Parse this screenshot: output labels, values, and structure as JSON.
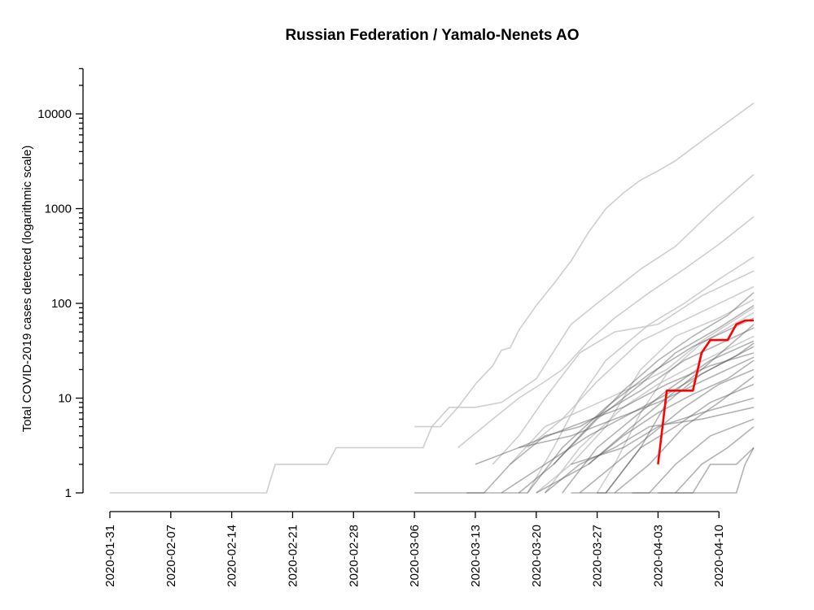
{
  "chart_data": {
    "type": "line",
    "title": "Russian Federation / Yamalo-Nenets AO",
    "xlabel": "",
    "ylabel": "Total COVID-2019 cases detected (logarithmic scale)",
    "y_scale": "log",
    "ylim": [
      1,
      30000
    ],
    "xlim": [
      "2020-01-31",
      "2020-04-14"
    ],
    "x_ticks": [
      "2020-01-31",
      "2020-02-07",
      "2020-02-14",
      "2020-02-21",
      "2020-02-28",
      "2020-03-06",
      "2020-03-13",
      "2020-03-20",
      "2020-03-27",
      "2020-04-03",
      "2020-04-10"
    ],
    "y_ticks": [
      1,
      10,
      100,
      1000,
      10000
    ],
    "y_tick_labels": [
      "1",
      "10",
      "100",
      "1000",
      "10000"
    ],
    "colors": {
      "highlight": "#ff0000",
      "other_regions": "#bdbdbd",
      "dense_regions": "#555555"
    },
    "highlight_series": {
      "name": "Yamalo-Nenets AO",
      "points": [
        [
          "2020-04-03",
          2
        ],
        [
          "2020-04-04",
          12
        ],
        [
          "2020-04-07",
          12
        ],
        [
          "2020-04-08",
          30
        ],
        [
          "2020-04-09",
          41
        ],
        [
          "2020-04-11",
          41
        ],
        [
          "2020-04-12",
          60
        ],
        [
          "2020-04-13",
          66
        ],
        [
          "2020-04-14",
          66
        ]
      ]
    },
    "other_series": [
      {
        "points": [
          [
            "2020-01-31",
            1
          ],
          [
            "2020-02-18",
            1
          ],
          [
            "2020-02-19",
            2
          ],
          [
            "2020-02-25",
            2
          ],
          [
            "2020-02-26",
            3
          ],
          [
            "2020-03-07",
            3
          ],
          [
            "2020-03-08",
            5
          ],
          [
            "2020-03-09",
            5
          ],
          [
            "2020-03-11",
            8
          ],
          [
            "2020-03-13",
            14
          ],
          [
            "2020-03-15",
            22
          ],
          [
            "2020-03-16",
            32
          ],
          [
            "2020-03-17",
            34
          ],
          [
            "2020-03-18",
            52
          ],
          [
            "2020-03-20",
            95
          ],
          [
            "2020-03-22",
            160
          ],
          [
            "2020-03-24",
            280
          ],
          [
            "2020-03-26",
            560
          ],
          [
            "2020-03-28",
            1000
          ],
          [
            "2020-03-30",
            1460
          ],
          [
            "2020-04-01",
            2000
          ],
          [
            "2020-04-03",
            2500
          ],
          [
            "2020-04-05",
            3200
          ],
          [
            "2020-04-07",
            4400
          ],
          [
            "2020-04-10",
            7000
          ],
          [
            "2020-04-14",
            13000
          ]
        ]
      },
      {
        "points": [
          [
            "2020-03-06",
            5
          ],
          [
            "2020-03-08",
            5
          ],
          [
            "2020-03-10",
            8
          ],
          [
            "2020-03-13",
            8
          ],
          [
            "2020-03-16",
            9
          ],
          [
            "2020-03-18",
            12
          ],
          [
            "2020-03-20",
            16
          ],
          [
            "2020-03-24",
            60
          ],
          [
            "2020-03-27",
            100
          ],
          [
            "2020-04-01",
            230
          ],
          [
            "2020-04-05",
            400
          ],
          [
            "2020-04-09",
            900
          ],
          [
            "2020-04-14",
            2300
          ]
        ]
      },
      {
        "points": [
          [
            "2020-03-11",
            3
          ],
          [
            "2020-03-15",
            6
          ],
          [
            "2020-03-18",
            10
          ],
          [
            "2020-03-21",
            15
          ],
          [
            "2020-03-23",
            20
          ],
          [
            "2020-03-26",
            40
          ],
          [
            "2020-03-29",
            70
          ],
          [
            "2020-04-02",
            130
          ],
          [
            "2020-04-06",
            230
          ],
          [
            "2020-04-10",
            420
          ],
          [
            "2020-04-14",
            820
          ]
        ]
      },
      {
        "points": [
          [
            "2020-03-19",
            1
          ],
          [
            "2020-03-22",
            3
          ],
          [
            "2020-03-25",
            10
          ],
          [
            "2020-03-28",
            25
          ],
          [
            "2020-04-02",
            60
          ],
          [
            "2020-04-06",
            100
          ],
          [
            "2020-04-10",
            180
          ],
          [
            "2020-04-14",
            310
          ]
        ]
      },
      {
        "points": [
          [
            "2020-03-15",
            2
          ],
          [
            "2020-03-18",
            4
          ],
          [
            "2020-03-21",
            10
          ],
          [
            "2020-03-25",
            30
          ],
          [
            "2020-03-29",
            50
          ],
          [
            "2020-04-03",
            60
          ],
          [
            "2020-04-08",
            120
          ],
          [
            "2020-04-14",
            220
          ]
        ]
      },
      {
        "points": [
          [
            "2020-03-19",
            3
          ],
          [
            "2020-03-23",
            6
          ],
          [
            "2020-03-27",
            15
          ],
          [
            "2020-04-01",
            40
          ],
          [
            "2020-04-05",
            60
          ],
          [
            "2020-04-09",
            90
          ],
          [
            "2020-04-14",
            150
          ]
        ]
      },
      {
        "points": [
          [
            "2020-03-20",
            1
          ],
          [
            "2020-03-24",
            2
          ],
          [
            "2020-03-28",
            5
          ],
          [
            "2020-04-01",
            20
          ],
          [
            "2020-04-05",
            45
          ],
          [
            "2020-04-10",
            70
          ],
          [
            "2020-04-14",
            110
          ]
        ]
      },
      {
        "points": [
          [
            "2020-03-17",
            2
          ],
          [
            "2020-03-21",
            5
          ],
          [
            "2020-03-26",
            8
          ],
          [
            "2020-03-31",
            13
          ],
          [
            "2020-04-04",
            20
          ],
          [
            "2020-04-08",
            40
          ],
          [
            "2020-04-14",
            90
          ]
        ]
      },
      {
        "points": [
          [
            "2020-03-27",
            1
          ],
          [
            "2020-03-29",
            2
          ],
          [
            "2020-04-01",
            7
          ],
          [
            "2020-04-04",
            18
          ],
          [
            "2020-04-08",
            38
          ],
          [
            "2020-04-14",
            80
          ]
        ]
      },
      {
        "points": [
          [
            "2020-03-21",
            1
          ],
          [
            "2020-03-25",
            3
          ],
          [
            "2020-03-30",
            8
          ],
          [
            "2020-04-03",
            14
          ],
          [
            "2020-04-07",
            22
          ],
          [
            "2020-04-14",
            45
          ]
        ]
      },
      {
        "points": [
          [
            "2020-03-06",
            1
          ],
          [
            "2020-03-14",
            1
          ],
          [
            "2020-03-17",
            2
          ],
          [
            "2020-03-21",
            4
          ],
          [
            "2020-03-25",
            5
          ],
          [
            "2020-04-01",
            12
          ],
          [
            "2020-04-06",
            25
          ],
          [
            "2020-04-14",
            55
          ]
        ]
      },
      {
        "points": [
          [
            "2020-03-23",
            1
          ],
          [
            "2020-03-27",
            3
          ],
          [
            "2020-03-31",
            6
          ],
          [
            "2020-04-04",
            12
          ],
          [
            "2020-04-09",
            25
          ],
          [
            "2020-04-14",
            40
          ]
        ]
      },
      {
        "points": [
          [
            "2020-03-13",
            2
          ],
          [
            "2020-03-18",
            3
          ],
          [
            "2020-03-24",
            5
          ],
          [
            "2020-03-30",
            8
          ],
          [
            "2020-04-04",
            14
          ],
          [
            "2020-04-09",
            22
          ],
          [
            "2020-04-14",
            30
          ]
        ]
      },
      {
        "points": [
          [
            "2020-03-25",
            1
          ],
          [
            "2020-03-29",
            2
          ],
          [
            "2020-04-02",
            4
          ],
          [
            "2020-04-06",
            8
          ],
          [
            "2020-04-10",
            14
          ],
          [
            "2020-04-14",
            20
          ]
        ]
      },
      {
        "points": [
          [
            "2020-03-28",
            1
          ],
          [
            "2020-04-01",
            3
          ],
          [
            "2020-04-05",
            5
          ],
          [
            "2020-04-09",
            9
          ],
          [
            "2020-04-14",
            14
          ]
        ]
      },
      {
        "points": [
          [
            "2020-03-24",
            2
          ],
          [
            "2020-03-30",
            3
          ],
          [
            "2020-04-03",
            5
          ],
          [
            "2020-04-08",
            7
          ],
          [
            "2020-04-14",
            10
          ]
        ]
      },
      {
        "points": [
          [
            "2020-03-27",
            1
          ],
          [
            "2020-04-02",
            1
          ],
          [
            "2020-04-05",
            2
          ],
          [
            "2020-04-09",
            4
          ],
          [
            "2020-04-14",
            6
          ]
        ]
      },
      {
        "points": [
          [
            "2020-03-31",
            1
          ],
          [
            "2020-04-07",
            1
          ],
          [
            "2020-04-09",
            2
          ],
          [
            "2020-04-12",
            2
          ],
          [
            "2020-04-14",
            3
          ]
        ]
      },
      {
        "points": [
          [
            "2020-04-03",
            1
          ],
          [
            "2020-04-12",
            1
          ],
          [
            "2020-04-13",
            2
          ],
          [
            "2020-04-14",
            3
          ]
        ]
      },
      {
        "points": [
          [
            "2020-03-16",
            1
          ],
          [
            "2020-03-21",
            2
          ],
          [
            "2020-03-26",
            4
          ],
          [
            "2020-03-31",
            7
          ],
          [
            "2020-04-04",
            11
          ],
          [
            "2020-04-08",
            18
          ],
          [
            "2020-04-14",
            35
          ]
        ]
      },
      {
        "points": [
          [
            "2020-03-18",
            1
          ],
          [
            "2020-03-22",
            2
          ],
          [
            "2020-03-27",
            6
          ],
          [
            "2020-04-01",
            14
          ],
          [
            "2020-04-05",
            30
          ],
          [
            "2020-04-10",
            55
          ],
          [
            "2020-04-14",
            95
          ]
        ]
      },
      {
        "points": [
          [
            "2020-03-22",
            2
          ],
          [
            "2020-03-26",
            5
          ],
          [
            "2020-03-30",
            12
          ],
          [
            "2020-04-03",
            25
          ],
          [
            "2020-04-07",
            45
          ],
          [
            "2020-04-11",
            75
          ],
          [
            "2020-04-14",
            130
          ]
        ]
      },
      {
        "points": [
          [
            "2020-03-20",
            1
          ],
          [
            "2020-03-26",
            2
          ],
          [
            "2020-03-31",
            5
          ],
          [
            "2020-04-04",
            10
          ],
          [
            "2020-04-08",
            20
          ],
          [
            "2020-04-14",
            60
          ]
        ]
      },
      {
        "points": [
          [
            "2020-03-12",
            1
          ],
          [
            "2020-03-19",
            1
          ],
          [
            "2020-03-23",
            3
          ],
          [
            "2020-03-28",
            8
          ],
          [
            "2020-04-02",
            18
          ],
          [
            "2020-04-07",
            35
          ],
          [
            "2020-04-14",
            70
          ]
        ]
      },
      {
        "points": [
          [
            "2020-03-24",
            1
          ],
          [
            "2020-03-28",
            1
          ],
          [
            "2020-04-01",
            3
          ],
          [
            "2020-04-04",
            9
          ],
          [
            "2020-04-08",
            18
          ],
          [
            "2020-04-12",
            28
          ],
          [
            "2020-04-14",
            38
          ]
        ]
      },
      {
        "points": [
          [
            "2020-03-26",
            2
          ],
          [
            "2020-03-30",
            4
          ],
          [
            "2020-04-03",
            7
          ],
          [
            "2020-04-07",
            11
          ],
          [
            "2020-04-11",
            16
          ],
          [
            "2020-04-14",
            25
          ]
        ]
      },
      {
        "points": [
          [
            "2020-03-29",
            1
          ],
          [
            "2020-04-02",
            2
          ],
          [
            "2020-04-06",
            5
          ],
          [
            "2020-04-10",
            9
          ],
          [
            "2020-04-14",
            17
          ]
        ]
      },
      {
        "points": [
          [
            "2020-03-18",
            3
          ],
          [
            "2020-03-24",
            4
          ],
          [
            "2020-03-29",
            6
          ],
          [
            "2020-04-03",
            9
          ],
          [
            "2020-04-08",
            15
          ],
          [
            "2020-04-14",
            27
          ]
        ]
      },
      {
        "points": [
          [
            "2020-03-21",
            1
          ],
          [
            "2020-03-25",
            2
          ],
          [
            "2020-03-29",
            3
          ],
          [
            "2020-04-02",
            5
          ],
          [
            "2020-04-08",
            6
          ],
          [
            "2020-04-14",
            8
          ]
        ]
      },
      {
        "points": [
          [
            "2020-04-05",
            1
          ],
          [
            "2020-04-08",
            2
          ],
          [
            "2020-04-11",
            3
          ],
          [
            "2020-04-14",
            5
          ]
        ]
      }
    ]
  }
}
